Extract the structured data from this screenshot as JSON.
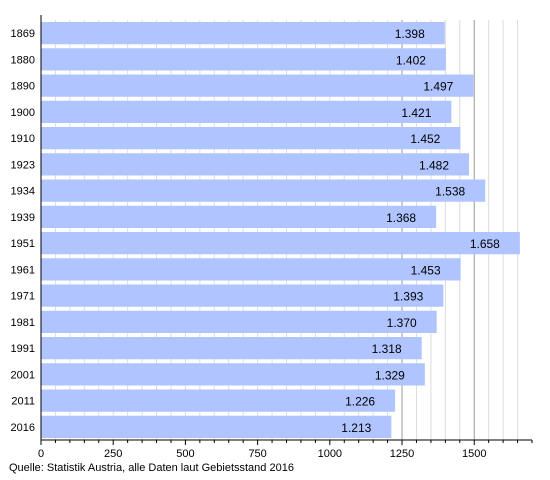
{
  "chart_data": {
    "type": "bar",
    "orientation": "horizontal",
    "categories": [
      "1869",
      "1880",
      "1890",
      "1900",
      "1910",
      "1923",
      "1934",
      "1939",
      "1951",
      "1961",
      "1971",
      "1981",
      "1991",
      "2001",
      "2011",
      "2016"
    ],
    "values": [
      1398,
      1402,
      1497,
      1421,
      1452,
      1482,
      1538,
      1368,
      1658,
      1453,
      1393,
      1370,
      1318,
      1329,
      1226,
      1213
    ],
    "value_labels": [
      "1.398",
      "1.402",
      "1.497",
      "1.421",
      "1.452",
      "1.482",
      "1.538",
      "1.368",
      "1.658",
      "1.453",
      "1.393",
      "1.370",
      "1.318",
      "1.329",
      "1.226",
      "1.213"
    ],
    "xlim": [
      0,
      1700
    ],
    "x_ticks": [
      0,
      250,
      500,
      750,
      1000,
      1250,
      1500
    ],
    "x_tick_labels": [
      "0",
      "250",
      "500",
      "750",
      "1000",
      "1250",
      "1500"
    ],
    "minor_grid_step": 50,
    "major_grid": [
      1250,
      1500
    ],
    "grid": true,
    "bar_color": "#b0c4ff",
    "source": "Quelle: Statistik Austria, alle Daten laut Gebietsstand 2016"
  }
}
